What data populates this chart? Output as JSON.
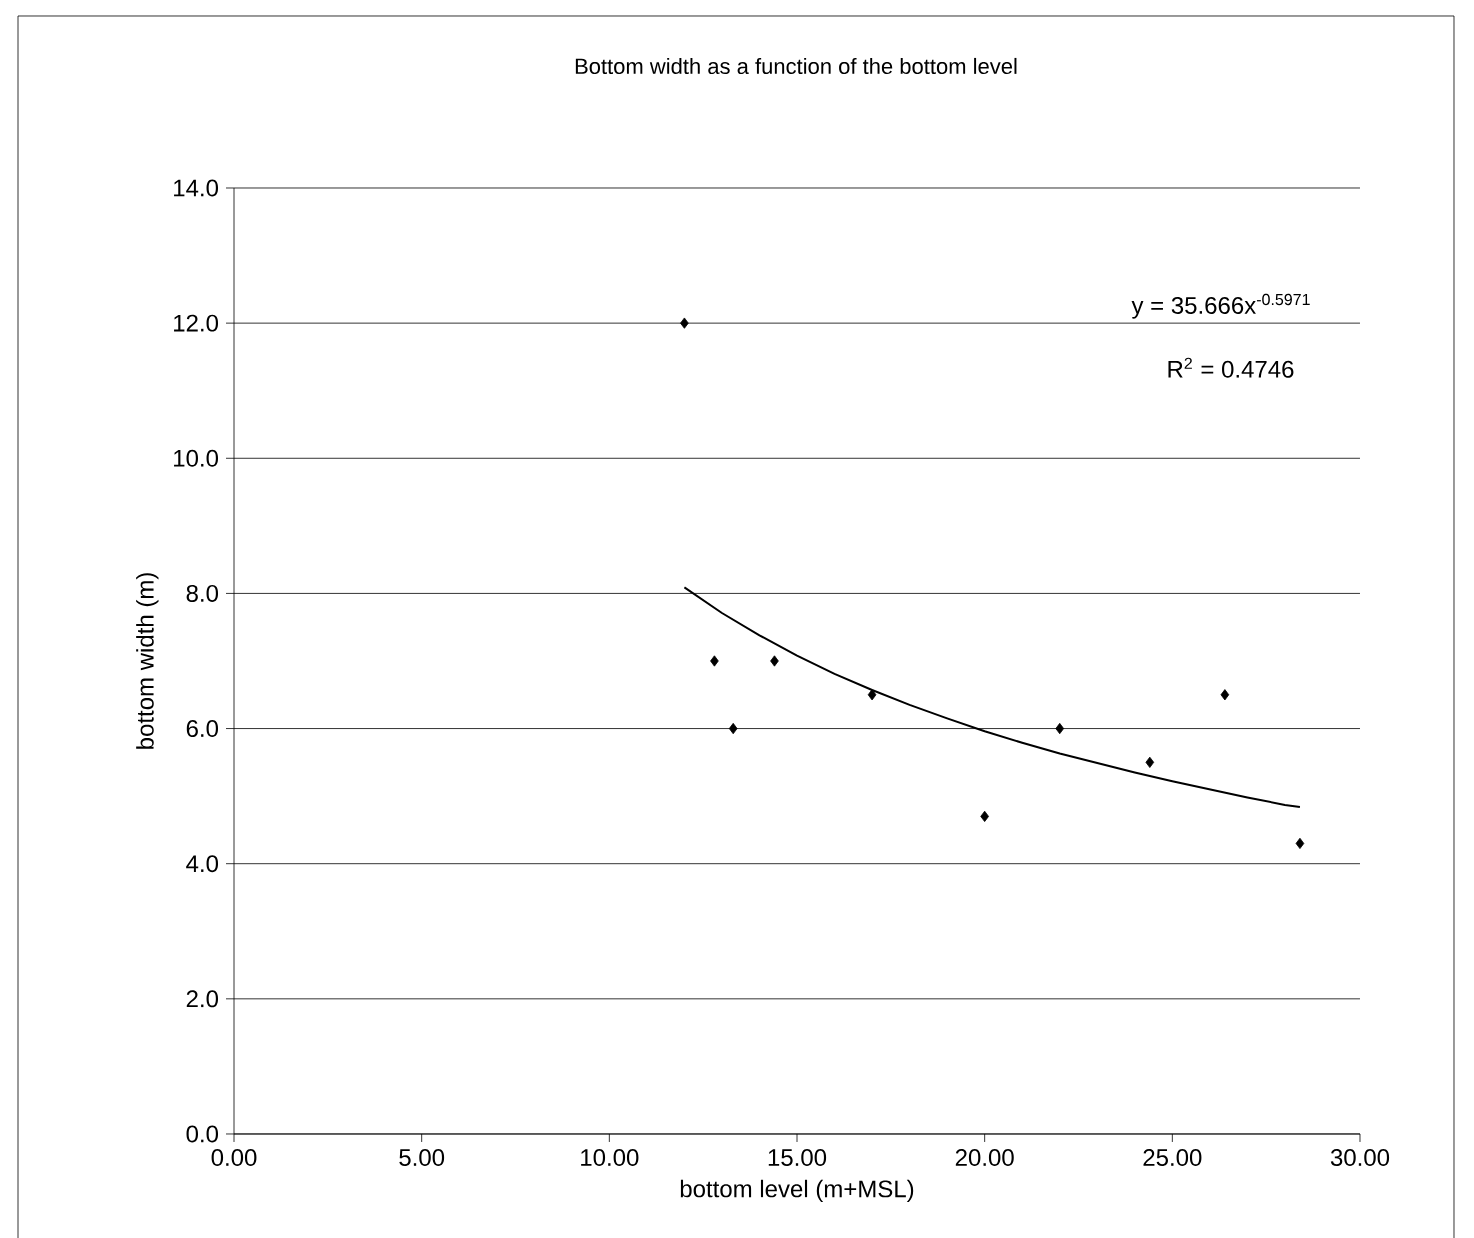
{
  "chart_data": {
    "type": "scatter",
    "title": "Bottom width as a function of the bottom level",
    "xlabel": "bottom level (m+MSL)",
    "ylabel": "bottom width (m)",
    "xlim": [
      0,
      30
    ],
    "ylim": [
      0,
      14
    ],
    "xticks": [
      {
        "value": 0,
        "label": "0.00"
      },
      {
        "value": 5,
        "label": "5.00"
      },
      {
        "value": 10,
        "label": "10.00"
      },
      {
        "value": 15,
        "label": "15.00"
      },
      {
        "value": 20,
        "label": "20.00"
      },
      {
        "value": 25,
        "label": "25.00"
      },
      {
        "value": 30,
        "label": "30.00"
      }
    ],
    "yticks": [
      {
        "value": 0,
        "label": "0.0"
      },
      {
        "value": 2,
        "label": "2.0"
      },
      {
        "value": 4,
        "label": "4.0"
      },
      {
        "value": 6,
        "label": "6.0"
      },
      {
        "value": 8,
        "label": "8.0"
      },
      {
        "value": 10,
        "label": "10.0"
      },
      {
        "value": 12,
        "label": "12.0"
      },
      {
        "value": 14,
        "label": "14.0"
      }
    ],
    "grid": "y",
    "series": [
      {
        "color": "#000000",
        "marker": "diamond",
        "x": [
          12.0,
          12.8,
          13.3,
          14.4,
          17.0,
          20.0,
          22.0,
          24.4,
          26.4,
          28.4
        ],
        "values": [
          12.0,
          7.0,
          6.0,
          7.0,
          6.5,
          4.7,
          6.0,
          5.5,
          6.5,
          4.3
        ]
      },
      {
        "type": "line",
        "color": "#000000",
        "marker": "none",
        "line_style": "solid",
        "x": [
          12,
          13,
          14,
          15,
          16,
          17,
          18,
          19,
          20,
          21,
          22,
          23,
          24,
          25,
          26,
          27,
          28,
          28.4
        ],
        "values": [
          8.09,
          7.71,
          7.38,
          7.08,
          6.81,
          6.57,
          6.35,
          6.15,
          5.96,
          5.79,
          5.63,
          5.49,
          5.35,
          5.22,
          5.1,
          4.98,
          4.87,
          4.84
        ]
      }
    ],
    "annotations": [
      "y = 35.666x$^{-0.5971}$",
      "R$^{2}$ = 0.4746"
    ]
  }
}
